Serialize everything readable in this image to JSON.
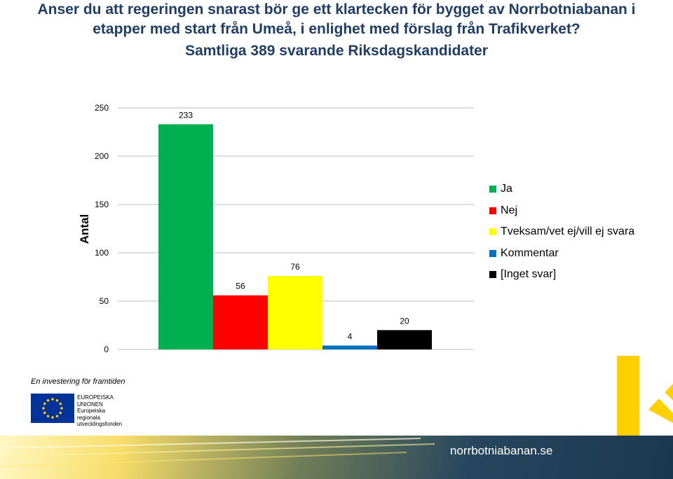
{
  "title": {
    "line1": "Anser du att regeringen snarast bör ge ett klartecken för bygget av Norrbotniabanan i",
    "line2": "etapper med start från Umeå, i enlighet med förslag från Trafikverket?",
    "subtitle": "Samtliga 389 svarande Riksdagskandidater"
  },
  "chart_data": {
    "type": "bar",
    "categories": [
      "Ja",
      "Nej",
      "Tveksam/vet ej/vill ej svara",
      "Kommentar",
      "[Inget svar]"
    ],
    "values": [
      233,
      56,
      76,
      4,
      20
    ],
    "colors": [
      "#00b050",
      "#ff0000",
      "#ffff00",
      "#0070c0",
      "#000000"
    ],
    "data_labels": [
      "233",
      "56",
      "76",
      "4",
      "20"
    ],
    "ylabel": "Antal",
    "ylim": [
      0,
      250
    ],
    "yticks": [
      0,
      50,
      100,
      150,
      200,
      250
    ],
    "ytick_labels": [
      "0",
      "50",
      "100",
      "150",
      "200",
      "250"
    ],
    "grid": true,
    "legend_position": "right"
  },
  "branding": {
    "eu_tagline": "En investering för framtiden",
    "eu_line1": "EUROPEISKA",
    "eu_line2": "UNIONEN",
    "eu_line3": "Europeiska",
    "eu_line4": "regionala",
    "eu_line5": "utvecklingsfonden",
    "website": "norrbotniabanan.se"
  },
  "colors": {
    "title": "#1f3d66",
    "brand_yellow": "#ffd000"
  }
}
